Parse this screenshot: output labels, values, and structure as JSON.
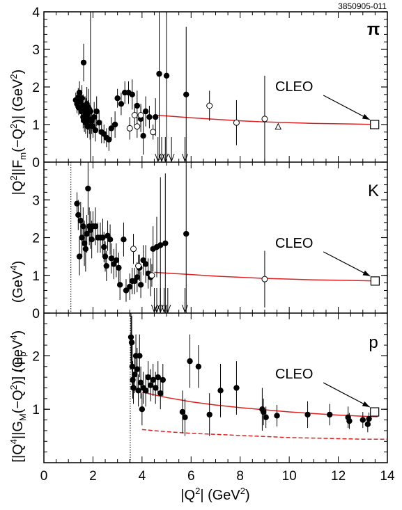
{
  "figure_id": "3850905-011",
  "x_axis": {
    "label_abs_open": "|",
    "label_q": "Q",
    "label_sup": "2",
    "label_abs_close": "|",
    "label_unit_open": " (GeV",
    "label_unit_sup": "2",
    "label_unit_close": ")",
    "ticks": [
      "0",
      "2",
      "4",
      "6",
      "8",
      "10",
      "12",
      "14"
    ]
  },
  "y_axis_upper": {
    "part1": "|Q",
    "part1_sup": "2",
    "part2": "||F",
    "part2_sub": "m",
    "part3": "(−Q",
    "part3_sup": "2",
    "part4": ")| (GeV",
    "part4_sup": "2",
    "part5": ")",
    "unit_open": "(GeV",
    "unit_sup": "4",
    "unit_close": ")"
  },
  "y_axis_lower": {
    "part1": "[|Q",
    "part1_sup": "4",
    "part2": "||G",
    "part2_sub": "M",
    "part3": "(−Q",
    "part3_sup": "2",
    "part4": ")] / μ",
    "part4_sub": "p",
    "unit_open": "(GeV",
    "unit_sup": "4",
    "unit_close": ")"
  },
  "colors": {
    "fit": "#e02020",
    "axis": "#000000",
    "filled": "#000000",
    "open": "#ffffff"
  },
  "chart_data": [
    {
      "type": "scatter",
      "panel": "pion",
      "label": "π",
      "annotation": "CLEO",
      "xlim": [
        0,
        14
      ],
      "ylim": [
        0,
        4
      ],
      "yticks": [
        "0",
        "1",
        "2",
        "3",
        "4"
      ],
      "cleo": {
        "x": 13.48,
        "y": 1.0
      },
      "fit": {
        "x": [
          4.5,
          5,
          6,
          7,
          8,
          9,
          10,
          11,
          12,
          13,
          13.6
        ],
        "y": [
          1.25,
          1.23,
          1.18,
          1.14,
          1.1,
          1.07,
          1.05,
          1.03,
          1.02,
          1.01,
          1.0
        ]
      },
      "series_filled": [
        {
          "x": 1.3,
          "y": 1.65,
          "e": 0.2
        },
        {
          "x": 1.35,
          "y": 1.55,
          "e": 0.25
        },
        {
          "x": 1.4,
          "y": 1.72,
          "e": 0.25
        },
        {
          "x": 1.42,
          "y": 1.45,
          "e": 0.2
        },
        {
          "x": 1.45,
          "y": 1.85,
          "e": 0.3
        },
        {
          "x": 1.5,
          "y": 1.6,
          "e": 0.25
        },
        {
          "x": 1.52,
          "y": 1.35,
          "e": 0.3
        },
        {
          "x": 1.55,
          "y": 1.7,
          "e": 0.35
        },
        {
          "x": 1.6,
          "y": 1.5,
          "e": 0.3
        },
        {
          "x": 1.6,
          "y": 1.2,
          "e": 0.3
        },
        {
          "x": 1.62,
          "y": 2.65,
          "e": 0.5
        },
        {
          "x": 1.65,
          "y": 1.1,
          "e": 0.3
        },
        {
          "x": 1.68,
          "y": 1.4,
          "e": 0.35
        },
        {
          "x": 1.7,
          "y": 1.05,
          "e": 0.3
        },
        {
          "x": 1.72,
          "y": 1.3,
          "e": 0.4
        },
        {
          "x": 1.75,
          "y": 1.55,
          "e": 0.45
        },
        {
          "x": 1.78,
          "y": 0.95,
          "e": 0.3
        },
        {
          "x": 1.8,
          "y": 1.25,
          "e": 0.4
        },
        {
          "x": 1.82,
          "y": 1.45,
          "e": 0.5
        },
        {
          "x": 1.85,
          "y": 1.15,
          "e": 0.4
        },
        {
          "x": 1.88,
          "y": 1.0,
          "e": 0.4
        },
        {
          "x": 1.9,
          "y": 1.35,
          "e": 3.5
        },
        {
          "x": 1.95,
          "y": 1.1,
          "e": 0.35
        },
        {
          "x": 2.0,
          "y": 0.95,
          "e": 0.3
        },
        {
          "x": 2.05,
          "y": 1.2,
          "e": 0.4
        },
        {
          "x": 2.1,
          "y": 0.85,
          "e": 0.3
        },
        {
          "x": 2.15,
          "y": 1.35,
          "e": 0.4
        },
        {
          "x": 2.25,
          "y": 1.05,
          "e": 0.3
        },
        {
          "x": 2.35,
          "y": 0.8,
          "e": 0.3
        },
        {
          "x": 2.45,
          "y": 0.75,
          "e": 0.25
        },
        {
          "x": 2.55,
          "y": 0.65,
          "e": 0.25
        },
        {
          "x": 2.65,
          "y": 0.6,
          "e": 0.3
        },
        {
          "x": 2.75,
          "y": 0.9,
          "e": 0.3
        },
        {
          "x": 2.9,
          "y": 1.0,
          "e": 0.35
        },
        {
          "x": 3.0,
          "y": 1.7,
          "e": 0.25
        },
        {
          "x": 3.15,
          "y": 1.55,
          "e": 0.3
        },
        {
          "x": 3.3,
          "y": 1.85,
          "e": 0.3
        },
        {
          "x": 3.45,
          "y": 1.85,
          "e": 0.3
        },
        {
          "x": 3.6,
          "y": 1.8,
          "e": 0.4
        },
        {
          "x": 3.8,
          "y": 1.5,
          "e": 0.4
        },
        {
          "x": 3.95,
          "y": 1.15,
          "e": 0.35
        },
        {
          "x": 4.05,
          "y": 0.7,
          "e": 0.5
        },
        {
          "x": 4.15,
          "y": 1.35,
          "e": 0.4
        },
        {
          "x": 4.3,
          "y": 1.2,
          "e": 0.3
        },
        {
          "x": 4.55,
          "y": 1.2,
          "e": 0.5
        },
        {
          "x": 4.7,
          "y": 2.35,
          "e": 2.3
        },
        {
          "x": 5.0,
          "y": 2.3,
          "e": 2.3
        },
        {
          "x": 5.8,
          "y": 1.8,
          "e": 1.8
        }
      ],
      "series_open": [
        {
          "x": 3.5,
          "y": 0.9,
          "e": 0.3
        },
        {
          "x": 3.7,
          "y": 1.25,
          "e": 0.3
        },
        {
          "x": 3.8,
          "y": 0.95,
          "e": 0.3
        },
        {
          "x": 3.95,
          "y": 1.25,
          "e": 0.3
        },
        {
          "x": 4.45,
          "y": 0.8,
          "e": 0.2
        },
        {
          "x": 6.75,
          "y": 1.5,
          "e": 0.4
        },
        {
          "x": 7.85,
          "y": 1.05,
          "e": 0.6
        },
        {
          "x": 9.0,
          "y": 1.15,
          "e": 1.15
        }
      ],
      "series_triangle": [
        {
          "x": 9.55,
          "y": 0.95
        }
      ],
      "upper_limits": [
        4.65,
        4.8,
        4.95,
        5.2,
        5.75
      ]
    },
    {
      "type": "scatter",
      "panel": "kaon",
      "label": "K",
      "annotation": "CLEO",
      "xlim": [
        0,
        14
      ],
      "ylim": [
        0,
        4
      ],
      "yticks": [
        "0",
        "1",
        "2",
        "3"
      ],
      "threshold_x": 1.1,
      "cleo": {
        "x": 13.5,
        "y": 0.85
      },
      "fit": {
        "x": [
          4.5,
          5,
          6,
          7,
          8,
          9,
          10,
          11,
          12,
          13,
          13.6
        ],
        "y": [
          1.08,
          1.06,
          1.02,
          0.98,
          0.95,
          0.92,
          0.9,
          0.88,
          0.87,
          0.86,
          0.85
        ]
      },
      "series_filled": [
        {
          "x": 1.35,
          "y": 2.9,
          "e": 0.3
        },
        {
          "x": 1.4,
          "y": 2.6,
          "e": 0.4
        },
        {
          "x": 1.45,
          "y": 1.5,
          "e": 0.5
        },
        {
          "x": 1.5,
          "y": 2.45,
          "e": 0.5
        },
        {
          "x": 1.55,
          "y": 2.0,
          "e": 0.5
        },
        {
          "x": 1.6,
          "y": 2.3,
          "e": 0.5
        },
        {
          "x": 1.65,
          "y": 1.85,
          "e": 0.6
        },
        {
          "x": 1.7,
          "y": 1.7,
          "e": 0.6
        },
        {
          "x": 1.75,
          "y": 2.1,
          "e": 0.5
        },
        {
          "x": 1.8,
          "y": 3.3,
          "e": 0.7
        },
        {
          "x": 1.85,
          "y": 2.3,
          "e": 0.5
        },
        {
          "x": 1.9,
          "y": 2.2,
          "e": 0.5
        },
        {
          "x": 1.95,
          "y": 1.95,
          "e": 0.5
        },
        {
          "x": 2.0,
          "y": 2.3,
          "e": 0.4
        },
        {
          "x": 2.1,
          "y": 2.3,
          "e": 0.5
        },
        {
          "x": 2.2,
          "y": 2.0,
          "e": 0.4
        },
        {
          "x": 2.3,
          "y": 2.0,
          "e": 0.4
        },
        {
          "x": 2.4,
          "y": 2.0,
          "e": 0.5
        },
        {
          "x": 2.45,
          "y": 1.75,
          "e": 0.4
        },
        {
          "x": 2.5,
          "y": 1.5,
          "e": 0.4
        },
        {
          "x": 2.55,
          "y": 1.25,
          "e": 0.4
        },
        {
          "x": 2.6,
          "y": 2.05,
          "e": 0.4
        },
        {
          "x": 2.7,
          "y": 1.95,
          "e": 0.4
        },
        {
          "x": 2.75,
          "y": 1.45,
          "e": 0.4
        },
        {
          "x": 2.85,
          "y": 1.3,
          "e": 0.4
        },
        {
          "x": 2.95,
          "y": 1.4,
          "e": 0.45
        },
        {
          "x": 3.05,
          "y": 1.2,
          "e": 0.4
        },
        {
          "x": 3.1,
          "y": 0.75,
          "e": 0.4
        },
        {
          "x": 3.25,
          "y": 1.95,
          "e": 0.45
        },
        {
          "x": 3.35,
          "y": 0.6,
          "e": 0.3
        },
        {
          "x": 3.5,
          "y": 0.7,
          "e": 0.35
        },
        {
          "x": 3.6,
          "y": 0.85,
          "e": 0.35
        },
        {
          "x": 3.7,
          "y": 0.85,
          "e": 0.35
        },
        {
          "x": 3.8,
          "y": 0.95,
          "e": 0.4
        },
        {
          "x": 3.9,
          "y": 1.2,
          "e": 0.35
        },
        {
          "x": 3.95,
          "y": 0.75,
          "e": 0.35
        },
        {
          "x": 4.05,
          "y": 1.4,
          "e": 0.4
        },
        {
          "x": 4.15,
          "y": 1.3,
          "e": 0.5
        },
        {
          "x": 4.25,
          "y": 1.05,
          "e": 0.4
        },
        {
          "x": 4.35,
          "y": 0.95,
          "e": 0.5
        },
        {
          "x": 4.45,
          "y": 1.7,
          "e": 0.6
        },
        {
          "x": 4.6,
          "y": 1.75,
          "e": 0.8
        },
        {
          "x": 4.75,
          "y": 1.8,
          "e": 1.8
        },
        {
          "x": 4.95,
          "y": 1.85,
          "e": 1.85
        },
        {
          "x": 5.8,
          "y": 2.1,
          "e": 2.1
        }
      ],
      "series_open": [
        {
          "x": 3.65,
          "y": 1.7,
          "e": 0.4
        },
        {
          "x": 3.85,
          "y": 1.25,
          "e": 0.3
        },
        {
          "x": 4.4,
          "y": 1.0,
          "e": 0.3
        },
        {
          "x": 9.0,
          "y": 0.9,
          "e": 0.75
        }
      ],
      "upper_limits": [
        4.5,
        4.6,
        4.75,
        4.9,
        5.05,
        5.75
      ]
    },
    {
      "type": "scatter",
      "panel": "proton",
      "label": "p",
      "annotation": "CLEO",
      "xlim": [
        0,
        14
      ],
      "ylim": [
        0,
        2.8
      ],
      "yticks": [
        "1",
        "2"
      ],
      "threshold_x": 3.52,
      "cleo": {
        "x": 13.48,
        "y": 0.95
      },
      "fit": {
        "x": [
          4.0,
          4.5,
          5,
          6,
          7,
          8,
          9,
          10,
          11,
          12,
          13,
          13.6
        ],
        "y": [
          1.32,
          1.27,
          1.22,
          1.14,
          1.08,
          1.03,
          0.99,
          0.95,
          0.92,
          0.89,
          0.87,
          0.86
        ]
      },
      "fit_dashed": {
        "x": [
          4.0,
          4.5,
          5,
          6,
          7,
          8,
          9,
          10,
          11,
          12,
          13,
          14
        ],
        "y": [
          0.62,
          0.6,
          0.58,
          0.55,
          0.53,
          0.51,
          0.49,
          0.47,
          0.46,
          0.45,
          0.44,
          0.44
        ]
      },
      "series_filled": [
        {
          "x": 3.55,
          "y": 2.35,
          "e": 0.5
        },
        {
          "x": 3.58,
          "y": 2.25,
          "e": 0.5
        },
        {
          "x": 3.6,
          "y": 1.8,
          "e": 0.4
        },
        {
          "x": 3.62,
          "y": 1.55,
          "e": 0.35
        },
        {
          "x": 3.65,
          "y": 1.4,
          "e": 0.3
        },
        {
          "x": 3.7,
          "y": 1.65,
          "e": 0.35
        },
        {
          "x": 3.75,
          "y": 2.0,
          "e": 0.4
        },
        {
          "x": 3.8,
          "y": 1.75,
          "e": 0.4
        },
        {
          "x": 3.85,
          "y": 1.35,
          "e": 0.3
        },
        {
          "x": 3.9,
          "y": 2.0,
          "e": 0.4
        },
        {
          "x": 3.95,
          "y": 1.5,
          "e": 0.3
        },
        {
          "x": 4.0,
          "y": 1.0,
          "e": 0.3
        },
        {
          "x": 4.05,
          "y": 1.4,
          "e": 0.3
        },
        {
          "x": 4.15,
          "y": 1.35,
          "e": 0.3
        },
        {
          "x": 4.25,
          "y": 1.6,
          "e": 0.3
        },
        {
          "x": 4.35,
          "y": 1.45,
          "e": 0.3
        },
        {
          "x": 4.45,
          "y": 1.55,
          "e": 0.3
        },
        {
          "x": 4.55,
          "y": 1.4,
          "e": 0.3
        },
        {
          "x": 4.65,
          "y": 1.6,
          "e": 0.3
        },
        {
          "x": 4.75,
          "y": 1.3,
          "e": 0.3
        },
        {
          "x": 4.85,
          "y": 1.55,
          "e": 0.3
        },
        {
          "x": 5.65,
          "y": 0.95,
          "e": 0.4
        },
        {
          "x": 5.75,
          "y": 0.85,
          "e": 0.35
        },
        {
          "x": 5.95,
          "y": 1.9,
          "e": 0.5
        },
        {
          "x": 6.3,
          "y": 1.8,
          "e": 0.4
        },
        {
          "x": 6.75,
          "y": 0.9,
          "e": 0.4
        },
        {
          "x": 7.2,
          "y": 1.35,
          "e": 0.5
        },
        {
          "x": 7.85,
          "y": 1.4,
          "e": 0.5
        },
        {
          "x": 8.9,
          "y": 1.0,
          "e": 0.4
        },
        {
          "x": 8.95,
          "y": 0.95,
          "e": 0.25
        },
        {
          "x": 9.05,
          "y": 0.85,
          "e": 0.2
        },
        {
          "x": 9.5,
          "y": 0.88,
          "e": 0.2
        },
        {
          "x": 10.75,
          "y": 0.9,
          "e": 0.25
        },
        {
          "x": 11.65,
          "y": 0.9,
          "e": 0.2
        },
        {
          "x": 12.4,
          "y": 0.85,
          "e": 0.2
        },
        {
          "x": 12.45,
          "y": 0.78,
          "e": 0.15
        },
        {
          "x": 13.0,
          "y": 0.8,
          "e": 0.15
        },
        {
          "x": 13.2,
          "y": 0.72,
          "e": 0.15
        },
        {
          "x": 13.25,
          "y": 0.82,
          "e": 0.12
        }
      ]
    }
  ]
}
